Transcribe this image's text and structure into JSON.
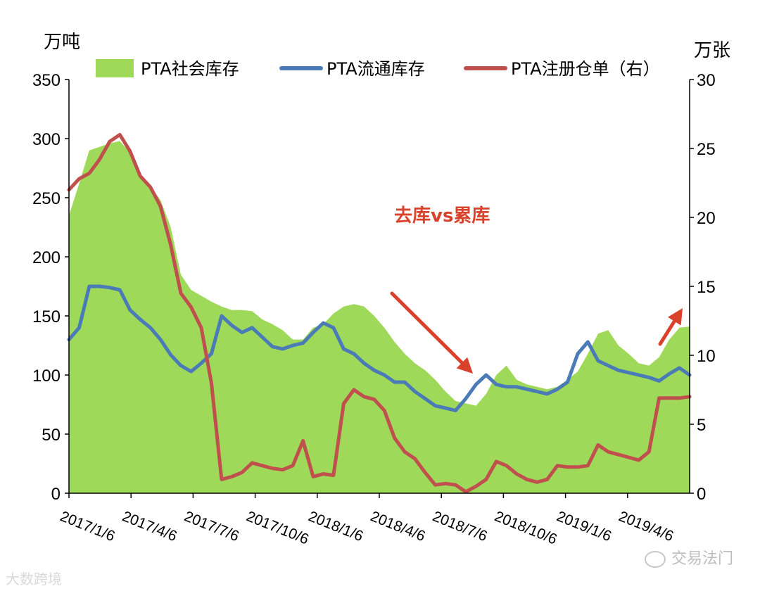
{
  "chart_data": {
    "type": "area",
    "left_unit": "万吨",
    "right_unit": "万张",
    "yleft": {
      "min": 0,
      "max": 350,
      "ticks": [
        "0",
        "50",
        "100",
        "150",
        "200",
        "250",
        "300",
        "350"
      ]
    },
    "yright": {
      "min": 0,
      "max": 30,
      "ticks": [
        "0",
        "5",
        "10",
        "15",
        "20",
        "25",
        "30"
      ]
    },
    "x_ticks": [
      "2017/1/6",
      "2017/4/6",
      "2017/7/6",
      "2017/10/6",
      "2018/1/6",
      "2018/4/6",
      "2018/7/6",
      "2018/10/6",
      "2019/1/6",
      "2019/4/6"
    ],
    "x": [
      "2017/1/6",
      "2017/1/20",
      "2017/2/3",
      "2017/2/17",
      "2017/3/3",
      "2017/3/17",
      "2017/3/31",
      "2017/4/14",
      "2017/4/28",
      "2017/5/12",
      "2017/5/26",
      "2017/6/9",
      "2017/6/23",
      "2017/7/7",
      "2017/7/21",
      "2017/8/4",
      "2017/8/18",
      "2017/9/1",
      "2017/9/15",
      "2017/9/29",
      "2017/10/13",
      "2017/10/27",
      "2017/11/10",
      "2017/11/24",
      "2017/12/8",
      "2017/12/22",
      "2018/1/5",
      "2018/1/19",
      "2018/2/2",
      "2018/2/16",
      "2018/3/2",
      "2018/3/16",
      "2018/3/30",
      "2018/4/13",
      "2018/4/27",
      "2018/5/11",
      "2018/5/25",
      "2018/6/8",
      "2018/6/22",
      "2018/7/6",
      "2018/7/20",
      "2018/8/3",
      "2018/8/17",
      "2018/8/31",
      "2018/9/14",
      "2018/9/28",
      "2018/10/12",
      "2018/10/26",
      "2018/11/9",
      "2018/11/23",
      "2018/12/7",
      "2018/12/21",
      "2019/1/4",
      "2019/1/18",
      "2019/2/1",
      "2019/2/15",
      "2019/3/1",
      "2019/3/15",
      "2019/3/29",
      "2019/4/12",
      "2019/4/26",
      "2019/5/10"
    ],
    "series": [
      {
        "name": "PTA社会库存",
        "axis": "left",
        "kind": "area",
        "color": "#9fd95a",
        "values": [
          235,
          262,
          290,
          293,
          296,
          298,
          288,
          268,
          260,
          248,
          225,
          185,
          172,
          167,
          162,
          158,
          155,
          155,
          154,
          147,
          143,
          138,
          130,
          130,
          140,
          143,
          152,
          158,
          160,
          158,
          150,
          140,
          128,
          118,
          110,
          104,
          96,
          86,
          78,
          76,
          74,
          84,
          100,
          108,
          96,
          92,
          90,
          88,
          90,
          96,
          103,
          118,
          135,
          138,
          125,
          118,
          110,
          108,
          115,
          130,
          140,
          141
        ]
      },
      {
        "name": "PTA流通库存",
        "axis": "left",
        "kind": "line",
        "color": "#4a7bb7",
        "values": [
          130,
          140,
          175,
          175,
          174,
          172,
          155,
          147,
          140,
          130,
          117,
          108,
          103,
          110,
          118,
          150,
          142,
          136,
          140,
          132,
          124,
          122,
          125,
          127,
          136,
          144,
          140,
          122,
          118,
          110,
          104,
          100,
          94,
          94,
          86,
          80,
          74,
          72,
          70,
          80,
          92,
          100,
          92,
          90,
          90,
          88,
          86,
          84,
          88,
          94,
          118,
          128,
          112,
          108,
          104,
          102,
          100,
          98,
          95,
          101,
          106,
          100
        ]
      },
      {
        "name": "PTA注册仓单（右）",
        "axis": "right",
        "kind": "line",
        "color": "#c0504d",
        "values": [
          22,
          22.8,
          23.2,
          24.2,
          25.5,
          26.0,
          24.8,
          23.0,
          22.2,
          20.8,
          18.0,
          14.5,
          13.5,
          12.0,
          8.0,
          1.0,
          1.2,
          1.5,
          2.2,
          2.0,
          1.8,
          1.7,
          2.0,
          3.8,
          1.2,
          1.4,
          1.3,
          6.5,
          7.5,
          7.0,
          6.8,
          6.0,
          4.0,
          3.0,
          2.5,
          1.5,
          0.6,
          0.7,
          0.6,
          0.1,
          0.5,
          1.0,
          2.3,
          2.0,
          1.4,
          1.0,
          0.8,
          1.0,
          2.0,
          1.9,
          1.9,
          2.0,
          3.5,
          3.0,
          2.8,
          2.6,
          2.4,
          3.0,
          6.9,
          6.9,
          6.9,
          7.0
        ]
      }
    ],
    "annotation": "去库vs累库",
    "legend": [
      "PTA社会库存",
      "PTA流通库存",
      "PTA注册仓单（右）"
    ],
    "colors": {
      "annotation": "#d9412b",
      "arrow": "#d9412b",
      "axis": "#000000"
    }
  },
  "watermarks": {
    "right": "交易法门",
    "left": "大数跨境"
  }
}
